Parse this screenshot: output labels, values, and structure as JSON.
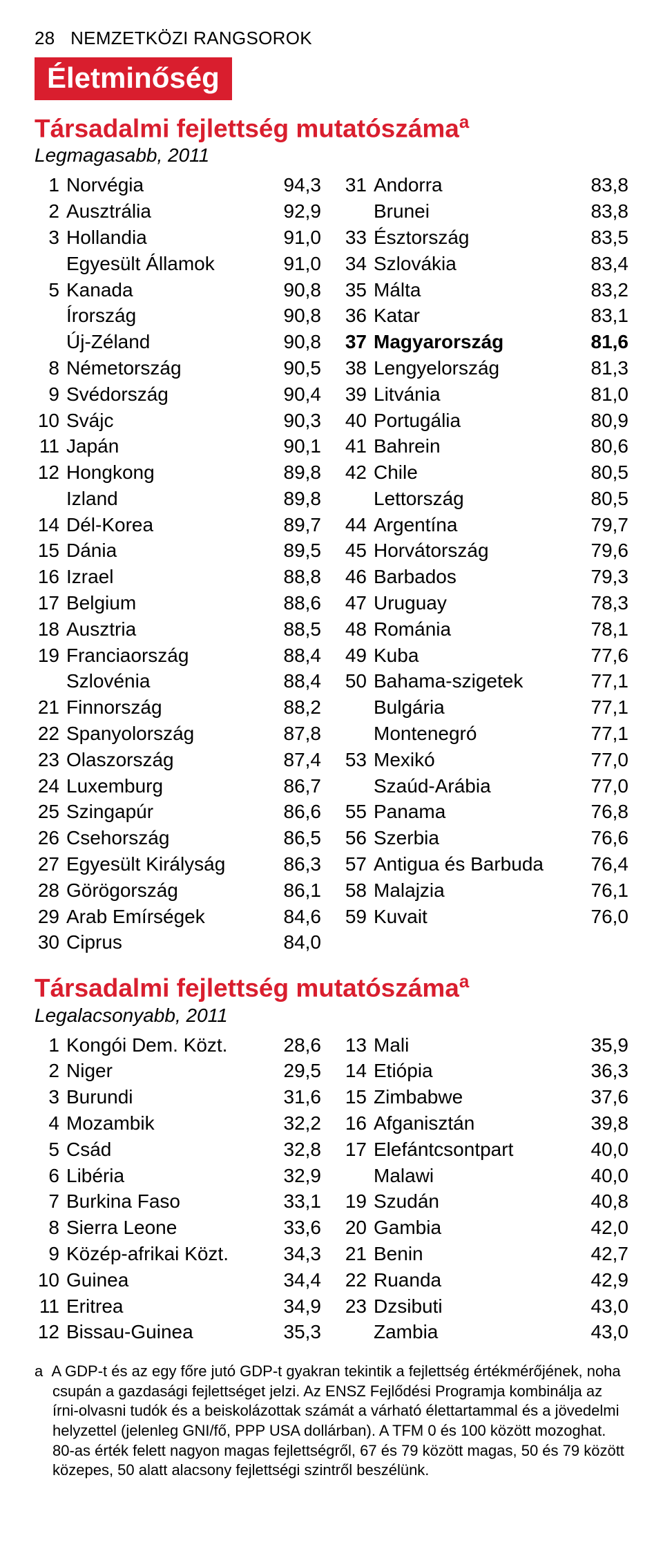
{
  "page_header": {
    "num": "28",
    "label": "NEMZETKÖZI RANGSOROK"
  },
  "category_title": "Életminőség",
  "colors": {
    "accent": "#d91e2e",
    "text": "#000000",
    "bg": "#ffffff"
  },
  "section1": {
    "title": "Társadalmi fejlettség mutatószáma",
    "title_sup": "a",
    "subtitle": "Legmagasabb, 2011",
    "left": [
      {
        "rank": "1",
        "country": "Norvégia",
        "val": "94,3"
      },
      {
        "rank": "2",
        "country": "Ausztrália",
        "val": "92,9"
      },
      {
        "rank": "3",
        "country": "Hollandia",
        "val": "91,0"
      },
      {
        "rank": "",
        "country": "Egyesült Államok",
        "val": "91,0"
      },
      {
        "rank": "5",
        "country": "Kanada",
        "val": "90,8"
      },
      {
        "rank": "",
        "country": "Írország",
        "val": "90,8"
      },
      {
        "rank": "",
        "country": "Új-Zéland",
        "val": "90,8"
      },
      {
        "rank": "8",
        "country": "Németország",
        "val": "90,5"
      },
      {
        "rank": "9",
        "country": "Svédország",
        "val": "90,4"
      },
      {
        "rank": "10",
        "country": "Svájc",
        "val": "90,3"
      },
      {
        "rank": "11",
        "country": "Japán",
        "val": "90,1"
      },
      {
        "rank": "12",
        "country": "Hongkong",
        "val": "89,8"
      },
      {
        "rank": "",
        "country": "Izland",
        "val": "89,8"
      },
      {
        "rank": "14",
        "country": "Dél-Korea",
        "val": "89,7"
      },
      {
        "rank": "15",
        "country": "Dánia",
        "val": "89,5"
      },
      {
        "rank": "16",
        "country": "Izrael",
        "val": "88,8"
      },
      {
        "rank": "17",
        "country": "Belgium",
        "val": "88,6"
      },
      {
        "rank": "18",
        "country": "Ausztria",
        "val": "88,5"
      },
      {
        "rank": "19",
        "country": "Franciaország",
        "val": "88,4"
      },
      {
        "rank": "",
        "country": "Szlovénia",
        "val": "88,4"
      },
      {
        "rank": "21",
        "country": "Finnország",
        "val": "88,2"
      },
      {
        "rank": "22",
        "country": "Spanyolország",
        "val": "87,8"
      },
      {
        "rank": "23",
        "country": "Olaszország",
        "val": "87,4"
      },
      {
        "rank": "24",
        "country": "Luxemburg",
        "val": "86,7"
      },
      {
        "rank": "25",
        "country": "Szingapúr",
        "val": "86,6"
      },
      {
        "rank": "26",
        "country": "Csehország",
        "val": "86,5"
      },
      {
        "rank": "27",
        "country": "Egyesült Királyság",
        "val": "86,3"
      },
      {
        "rank": "28",
        "country": "Görögország",
        "val": "86,1"
      },
      {
        "rank": "29",
        "country": "Arab Emírségek",
        "val": "84,6"
      },
      {
        "rank": "30",
        "country": "Ciprus",
        "val": "84,0"
      }
    ],
    "right": [
      {
        "rank": "31",
        "country": "Andorra",
        "val": "83,8"
      },
      {
        "rank": "",
        "country": "Brunei",
        "val": "83,8"
      },
      {
        "rank": "33",
        "country": "Észtország",
        "val": "83,5"
      },
      {
        "rank": "34",
        "country": "Szlovákia",
        "val": "83,4"
      },
      {
        "rank": "35",
        "country": "Málta",
        "val": "83,2"
      },
      {
        "rank": "36",
        "country": "Katar",
        "val": "83,1"
      },
      {
        "rank": "37",
        "country": "Magyarország",
        "val": "81,6",
        "bold": true
      },
      {
        "rank": "38",
        "country": "Lengyelország",
        "val": "81,3"
      },
      {
        "rank": "39",
        "country": "Litvánia",
        "val": "81,0"
      },
      {
        "rank": "40",
        "country": "Portugália",
        "val": "80,9"
      },
      {
        "rank": "41",
        "country": "Bahrein",
        "val": "80,6"
      },
      {
        "rank": "42",
        "country": "Chile",
        "val": "80,5"
      },
      {
        "rank": "",
        "country": "Lettország",
        "val": "80,5"
      },
      {
        "rank": "44",
        "country": "Argentína",
        "val": "79,7"
      },
      {
        "rank": "45",
        "country": "Horvátország",
        "val": "79,6"
      },
      {
        "rank": "46",
        "country": "Barbados",
        "val": "79,3"
      },
      {
        "rank": "47",
        "country": "Uruguay",
        "val": "78,3"
      },
      {
        "rank": "48",
        "country": "Románia",
        "val": "78,1"
      },
      {
        "rank": "49",
        "country": "Kuba",
        "val": "77,6"
      },
      {
        "rank": "50",
        "country": "Bahama-szigetek",
        "val": "77,1"
      },
      {
        "rank": "",
        "country": "Bulgária",
        "val": "77,1"
      },
      {
        "rank": "",
        "country": "Montenegró",
        "val": "77,1"
      },
      {
        "rank": "53",
        "country": "Mexikó",
        "val": "77,0"
      },
      {
        "rank": "",
        "country": "Szaúd-Arábia",
        "val": "77,0"
      },
      {
        "rank": "55",
        "country": "Panama",
        "val": "76,8"
      },
      {
        "rank": "56",
        "country": "Szerbia",
        "val": "76,6"
      },
      {
        "rank": "57",
        "country": "Antigua és Barbuda",
        "val": "76,4"
      },
      {
        "rank": "58",
        "country": "Malajzia",
        "val": "76,1"
      },
      {
        "rank": "59",
        "country": "Kuvait",
        "val": "76,0"
      }
    ]
  },
  "section2": {
    "title": "Társadalmi fejlettség mutatószáma",
    "title_sup": "a",
    "subtitle": "Legalacsonyabb, 2011",
    "left": [
      {
        "rank": "1",
        "country": "Kongói Dem. Közt.",
        "val": "28,6"
      },
      {
        "rank": "2",
        "country": "Niger",
        "val": "29,5"
      },
      {
        "rank": "3",
        "country": "Burundi",
        "val": "31,6"
      },
      {
        "rank": "4",
        "country": "Mozambik",
        "val": "32,2"
      },
      {
        "rank": "5",
        "country": "Csád",
        "val": "32,8"
      },
      {
        "rank": "6",
        "country": "Libéria",
        "val": "32,9"
      },
      {
        "rank": "7",
        "country": "Burkina Faso",
        "val": "33,1"
      },
      {
        "rank": "8",
        "country": "Sierra Leone",
        "val": "33,6"
      },
      {
        "rank": "9",
        "country": "Közép-afrikai Közt.",
        "val": "34,3"
      },
      {
        "rank": "10",
        "country": "Guinea",
        "val": "34,4"
      },
      {
        "rank": "11",
        "country": "Eritrea",
        "val": "34,9"
      },
      {
        "rank": "12",
        "country": "Bissau-Guinea",
        "val": "35,3"
      }
    ],
    "right": [
      {
        "rank": "13",
        "country": "Mali",
        "val": "35,9"
      },
      {
        "rank": "14",
        "country": "Etiópia",
        "val": "36,3"
      },
      {
        "rank": "15",
        "country": "Zimbabwe",
        "val": "37,6"
      },
      {
        "rank": "16",
        "country": "Afganisztán",
        "val": "39,8"
      },
      {
        "rank": "17",
        "country": "Elefántcsontpart",
        "val": "40,0"
      },
      {
        "rank": "",
        "country": "Malawi",
        "val": "40,0"
      },
      {
        "rank": "19",
        "country": "Szudán",
        "val": "40,8"
      },
      {
        "rank": "20",
        "country": "Gambia",
        "val": "42,0"
      },
      {
        "rank": "21",
        "country": "Benin",
        "val": "42,7"
      },
      {
        "rank": "22",
        "country": "Ruanda",
        "val": "42,9"
      },
      {
        "rank": "23",
        "country": "Dzsibuti",
        "val": "43,0"
      },
      {
        "rank": "",
        "country": "Zambia",
        "val": "43,0"
      }
    ]
  },
  "footnote": {
    "marker": "a",
    "text": "A GDP-t és az egy főre jutó GDP-t gyakran tekintik a fejlettség értékmérőjének, noha csupán a gazdasági fejlettséget jelzi. Az ENSZ Fejlődési Programja kombinálja az írni-olvasni tudók és a beiskolázottak számát a várható élettartammal és a jövedelmi helyzettel (jelenleg GNI/fő, PPP USA dollárban). A TFM 0 és 100 között mozoghat. 80-as érték felett nagyon magas fejlettségről, 67 és 79 között magas, 50 és 79 között közepes, 50 alatt alacsony fejlettségi szintről beszélünk."
  }
}
